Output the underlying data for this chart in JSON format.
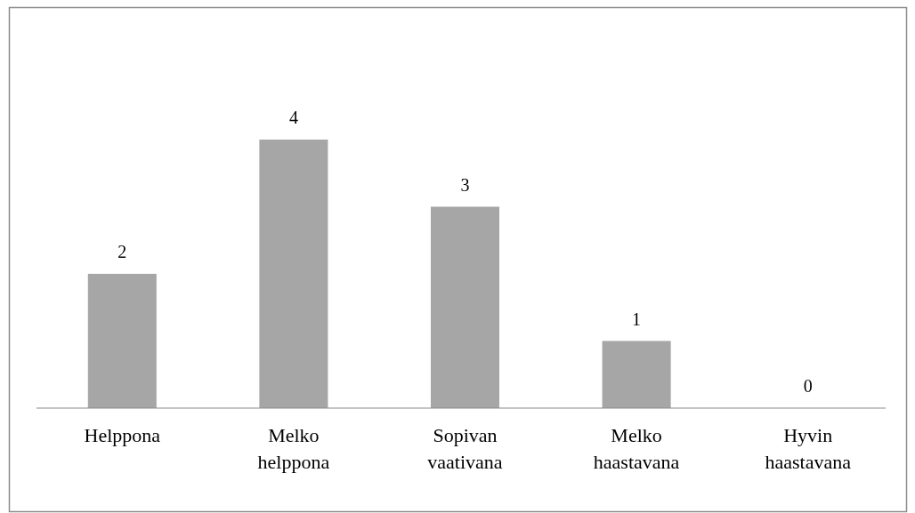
{
  "chart_data": {
    "type": "bar",
    "categories": [
      "Helppona",
      "Melko helppona",
      "Sopivan vaativana",
      "Melko haastavana",
      "Hyvin haastavana"
    ],
    "values": [
      2,
      4,
      3,
      1,
      0
    ],
    "color": "#a6a6a6",
    "data_labels": true
  }
}
